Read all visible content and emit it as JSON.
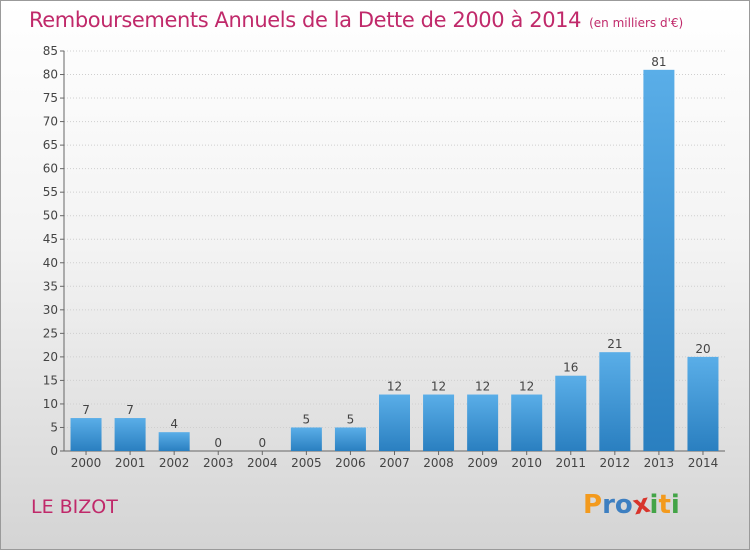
{
  "title": "Remboursements Annuels de la Dette de 2000 à 2014",
  "unit": "(en milliers d'€)",
  "commune": "LE BIZOT",
  "logo": {
    "letters": [
      "P",
      "r",
      "o",
      "x",
      "i",
      "t",
      "i"
    ],
    "colors": [
      "#f39a1d",
      "#3d7fc1",
      "#3d7fc1",
      "#d8342b",
      "#43a447",
      "#f39a1d",
      "#43a447"
    ]
  },
  "colors": {
    "title": "#c0296a",
    "bar_light": "#5aaee8",
    "bar_dark": "#2a7fc0",
    "grid": "#cfcfcf"
  },
  "chart_data": {
    "type": "bar",
    "title": "Remboursements Annuels de la Dette de 2000 à 2014",
    "xlabel": "",
    "ylabel": "",
    "categories": [
      "2000",
      "2001",
      "2002",
      "2003",
      "2004",
      "2005",
      "2006",
      "2007",
      "2008",
      "2009",
      "2010",
      "2011",
      "2012",
      "2013",
      "2014"
    ],
    "values": [
      7,
      7,
      4,
      0,
      0,
      5,
      5,
      12,
      12,
      12,
      12,
      16,
      21,
      81,
      20
    ],
    "ylim": [
      0,
      85
    ],
    "yticks": [
      0,
      5,
      10,
      15,
      20,
      25,
      30,
      35,
      40,
      45,
      50,
      55,
      60,
      65,
      70,
      75,
      80,
      85
    ],
    "grid": "horizontal dotted",
    "legend": "none"
  }
}
